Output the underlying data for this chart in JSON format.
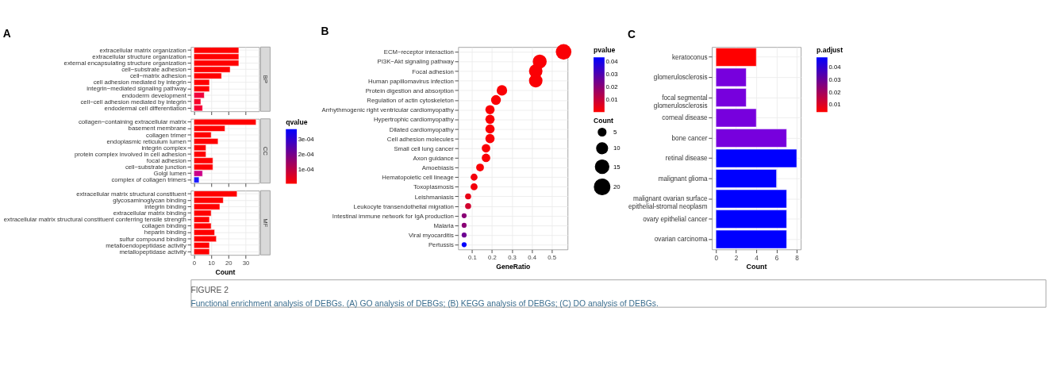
{
  "chart_data": [
    {
      "type": "bar",
      "orientation": "horizontal",
      "title": "BP",
      "annotations": [
        "A",
        "FIGURE 2",
        "Functional enrichment analysis of DEBGs. (A) GO analysis of DEBGs; (B) KEGG analysis of DEBGs; (C) DO analysis of DEBGs."
      ],
      "categories": [
        "extracellular matrix organization",
        "extracellular structure organization",
        "external encapsulating structure organization",
        "cell−substrate adhesion",
        "cell−matrix adhesion",
        "cell adhesion mediated by integrin",
        "integrin−mediated signaling pathway",
        "endoderm development",
        "cell−cell adhesion mediated by integrin",
        "endodermal cell differentiation"
      ],
      "values": [
        26,
        26,
        26,
        21,
        16,
        9,
        9,
        6,
        4,
        5
      ],
      "colors": [
        "#ff0000",
        "#ff0000",
        "#ff0000",
        "#ff0000",
        "#ff0000",
        "#ff0000",
        "#ff0000",
        "#f2003a",
        "#f80028",
        "#f50032"
      ],
      "xlim": [
        -1.8,
        37.8
      ],
      "xticks": [
        0,
        10,
        20,
        30
      ],
      "grid": true,
      "tick_labels": "y"
    },
    {
      "type": "bar",
      "orientation": "horizontal",
      "title": "CC",
      "clabel": "qvalue",
      "clim": [
        0,
        0.00037
      ],
      "cticks": [
        {
          "value": 0.0001,
          "label": "1e-04"
        },
        {
          "value": 0.0002,
          "label": "2e-04"
        },
        {
          "value": 0.0003,
          "label": "3e-04"
        }
      ],
      "categories": [
        "collagen−containing extracellular matrix",
        "basement membrane",
        "collagen trimer",
        "endoplasmic reticulum lumen",
        "integrin complex",
        "protein complex involved in cell adhesion",
        "focal adhesion",
        "cell−substrate junction",
        "Golgi lumen",
        "complex of collagen trimers"
      ],
      "values": [
        36,
        18,
        10,
        14,
        7,
        7,
        11,
        11,
        5,
        3
      ],
      "colors": [
        "#ff0000",
        "#ff0000",
        "#ff0000",
        "#ff0000",
        "#ff0000",
        "#ff0000",
        "#ff0000",
        "#ff0000",
        "#cc0088",
        "#1a1aff"
      ],
      "xlim": [
        -1.8,
        37.8
      ],
      "xticks": [
        0,
        10,
        20,
        30
      ],
      "grid": true,
      "tick_labels": "y"
    },
    {
      "type": "bar",
      "orientation": "horizontal",
      "title": "MF",
      "xlabel": "Count",
      "categories": [
        "extracellular matrix structural constituent",
        "glycosaminoglycan binding",
        "integrin binding",
        "extracellular matrix binding",
        "extracellular matrix structural constituent conferring tensile strength",
        "collagen binding",
        "heparin binding",
        "sulfur compound binding",
        "metalloendopeptidase activity",
        "metallopeptidase activity"
      ],
      "values": [
        25,
        17,
        15,
        10,
        9,
        10,
        12,
        13,
        9,
        9
      ],
      "colors": [
        "#ff0000",
        "#ff0000",
        "#ff0000",
        "#ff0000",
        "#ff0000",
        "#ff0000",
        "#ff0000",
        "#ff0000",
        "#ff0000",
        "#ff0000"
      ],
      "xlim": [
        -1.8,
        37.8
      ],
      "xticks": [
        0,
        10,
        20,
        30
      ],
      "grid": true
    },
    {
      "type": "bubble",
      "orientation": "horizontal",
      "annotations": [
        "B"
      ],
      "xlabel": "GeneRatio",
      "legend_title": "Count",
      "size_legend": [
        5,
        10,
        15,
        20
      ],
      "clabel": "pvalue",
      "clim": [
        0.0002,
        0.0434
      ],
      "cticks": [
        0.01,
        0.02,
        0.03,
        0.04
      ],
      "marker": "circle",
      "categories": [
        "ECM−receptor interaction",
        "PI3K−Akt signaling pathway",
        "Focal adhesion",
        "Human papillomavirus infection",
        "Protein digestion and absorption",
        "Regulation of actin cytoskeleton",
        "Arrhythmogenic right ventricular cardiomyopathy",
        "Hypertrophic cardiomyopathy",
        "Dilated cardiomyopathy",
        "Cell adhesion molecules",
        "Small cell lung cancer",
        "Axon guidance",
        "Amoebiasis",
        "Hematopoietic cell lineage",
        "Toxoplasmosis",
        "Leishmaniasis",
        "Leukocyte transendothelial migration",
        "Intestinal immune network for IgA production",
        "Malaria",
        "Viral myocarditis",
        "Pertussis"
      ],
      "values": [
        0.56,
        0.44,
        0.42,
        0.42,
        0.25,
        0.22,
        0.19,
        0.19,
        0.19,
        0.19,
        0.17,
        0.17,
        0.14,
        0.11,
        0.11,
        0.08,
        0.08,
        0.06,
        0.06,
        0.06,
        0.06
      ],
      "sizes": [
        20,
        16,
        15,
        15,
        9,
        8,
        7,
        7,
        7,
        7,
        6,
        6,
        5,
        4,
        4,
        3,
        3,
        2,
        2,
        2,
        2
      ],
      "cvalues": [
        0.001,
        0.001,
        0.001,
        0.001,
        0.001,
        0.001,
        0.001,
        0.001,
        0.001,
        0.001,
        0.001,
        0.001,
        0.001,
        0.002,
        0.002,
        0.004,
        0.008,
        0.02,
        0.02,
        0.025,
        0.043
      ],
      "xlim": [
        0.03,
        0.58
      ],
      "xticks": [
        0.1,
        0.2,
        0.3,
        0.4,
        0.5
      ],
      "grid": true
    },
    {
      "type": "bar",
      "orientation": "horizontal",
      "annotations": [
        "C"
      ],
      "xlabel": "Count",
      "clabel": "p.adjust",
      "clim": [
        0.004,
        0.048
      ],
      "cticks": [
        0.01,
        0.02,
        0.03,
        0.04
      ],
      "categories": [
        "keratoconus",
        "glomerulosclerosis",
        "focal segmental glomerulosclerosis",
        "corneal disease",
        "bone cancer",
        "retinal disease",
        "malignant glioma",
        "malignant ovarian surface epithelial-stromal neoplasm",
        "ovary epithelial cancer",
        "ovarian carcinoma"
      ],
      "values": [
        4,
        3,
        3,
        4,
        7,
        8,
        6,
        7,
        7,
        7
      ],
      "colors": [
        "#ff0000",
        "#7700dd",
        "#7700dd",
        "#7700dd",
        "#7700dd",
        "#0000ff",
        "#0000ff",
        "#0000ff",
        "#0000ff",
        "#0000ff"
      ],
      "xlim": [
        -0.4,
        8.4
      ],
      "xticks": [
        0,
        2,
        4,
        6,
        8
      ],
      "grid": true
    }
  ]
}
